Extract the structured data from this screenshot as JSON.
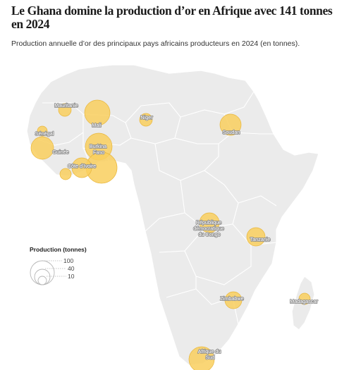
{
  "title": "Le Ghana domine la production d’or en Afrique avec 141 tonnes en 2024",
  "subtitle": "Production annuelle d’or des principaux pays africains producteurs en 2024 (en tonnes).",
  "colors": {
    "land": "#ebebeb",
    "bubble": "#f9cf5e",
    "bubble_stroke": "#e8b63c",
    "background": "#ffffff"
  },
  "legend": {
    "title": "Production (tonnes)",
    "values": [
      "100",
      "40",
      "10"
    ]
  },
  "labels": {
    "mauritanie": "Mauritanie",
    "mali": "Mali",
    "niger": "Niger",
    "soudan": "Soudan",
    "senegal": "Sénégal",
    "guinee": "Guinée",
    "burkina_faso": [
      "Burkina",
      "Faso"
    ],
    "cote_divoire": "Côte d’Ivoire",
    "rdc": [
      "République",
      "démocratique",
      "du Congo"
    ],
    "tanzanie": "Tanzanie",
    "zimbabwe": "Zimbabwe",
    "madagascar": "Madagascar",
    "afrique_du_sud": [
      "Afrique du",
      "Sud"
    ]
  }
}
